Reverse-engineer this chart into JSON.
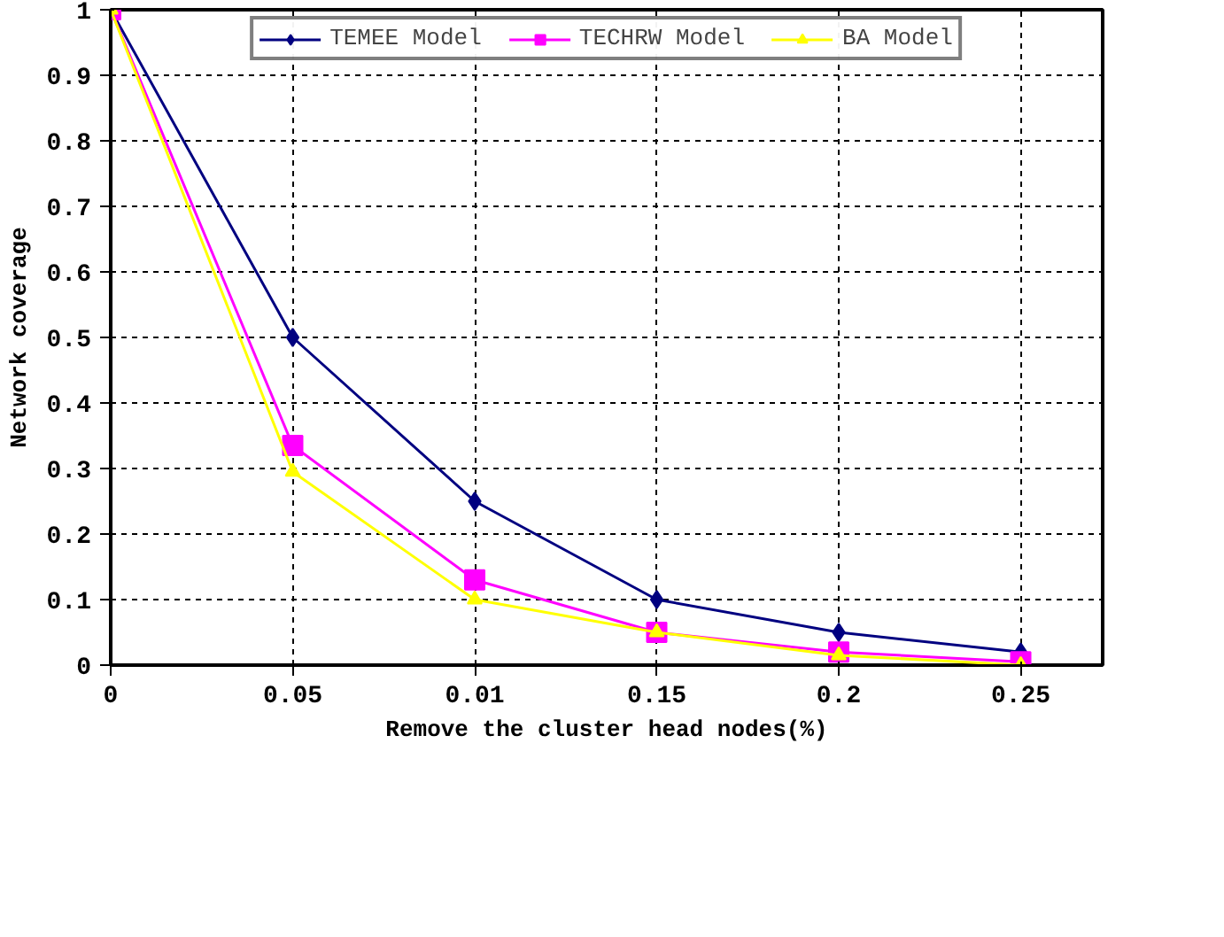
{
  "chart_data": {
    "type": "line",
    "xlabel": "Remove the cluster head nodes(%)",
    "ylabel": "Network coverage",
    "categories": [
      "0",
      "0.05",
      "0.01",
      "0.15",
      "0.2",
      "0.25"
    ],
    "series": [
      {
        "name": "TEMEE Model",
        "color": "#000080",
        "marker": "diamond",
        "values": [
          1,
          0.5,
          0.25,
          0.1,
          0.05,
          0.02
        ]
      },
      {
        "name": "TECHRW Model",
        "color": "#ff00ff",
        "marker": "square",
        "values": [
          1,
          0.335,
          0.13,
          0.05,
          0.02,
          0.005
        ]
      },
      {
        "name": "BA Model",
        "color": "#ffff00",
        "marker": "triangle",
        "values": [
          1,
          0.295,
          0.1,
          0.05,
          0.015,
          0.0
        ]
      }
    ],
    "ylim": [
      0,
      1
    ],
    "yticks": [
      0,
      0.1,
      0.2,
      0.3,
      0.4,
      0.5,
      0.6,
      0.7,
      0.8,
      0.9,
      1
    ],
    "grid": true,
    "legend": "top",
    "line_style": "solid"
  }
}
